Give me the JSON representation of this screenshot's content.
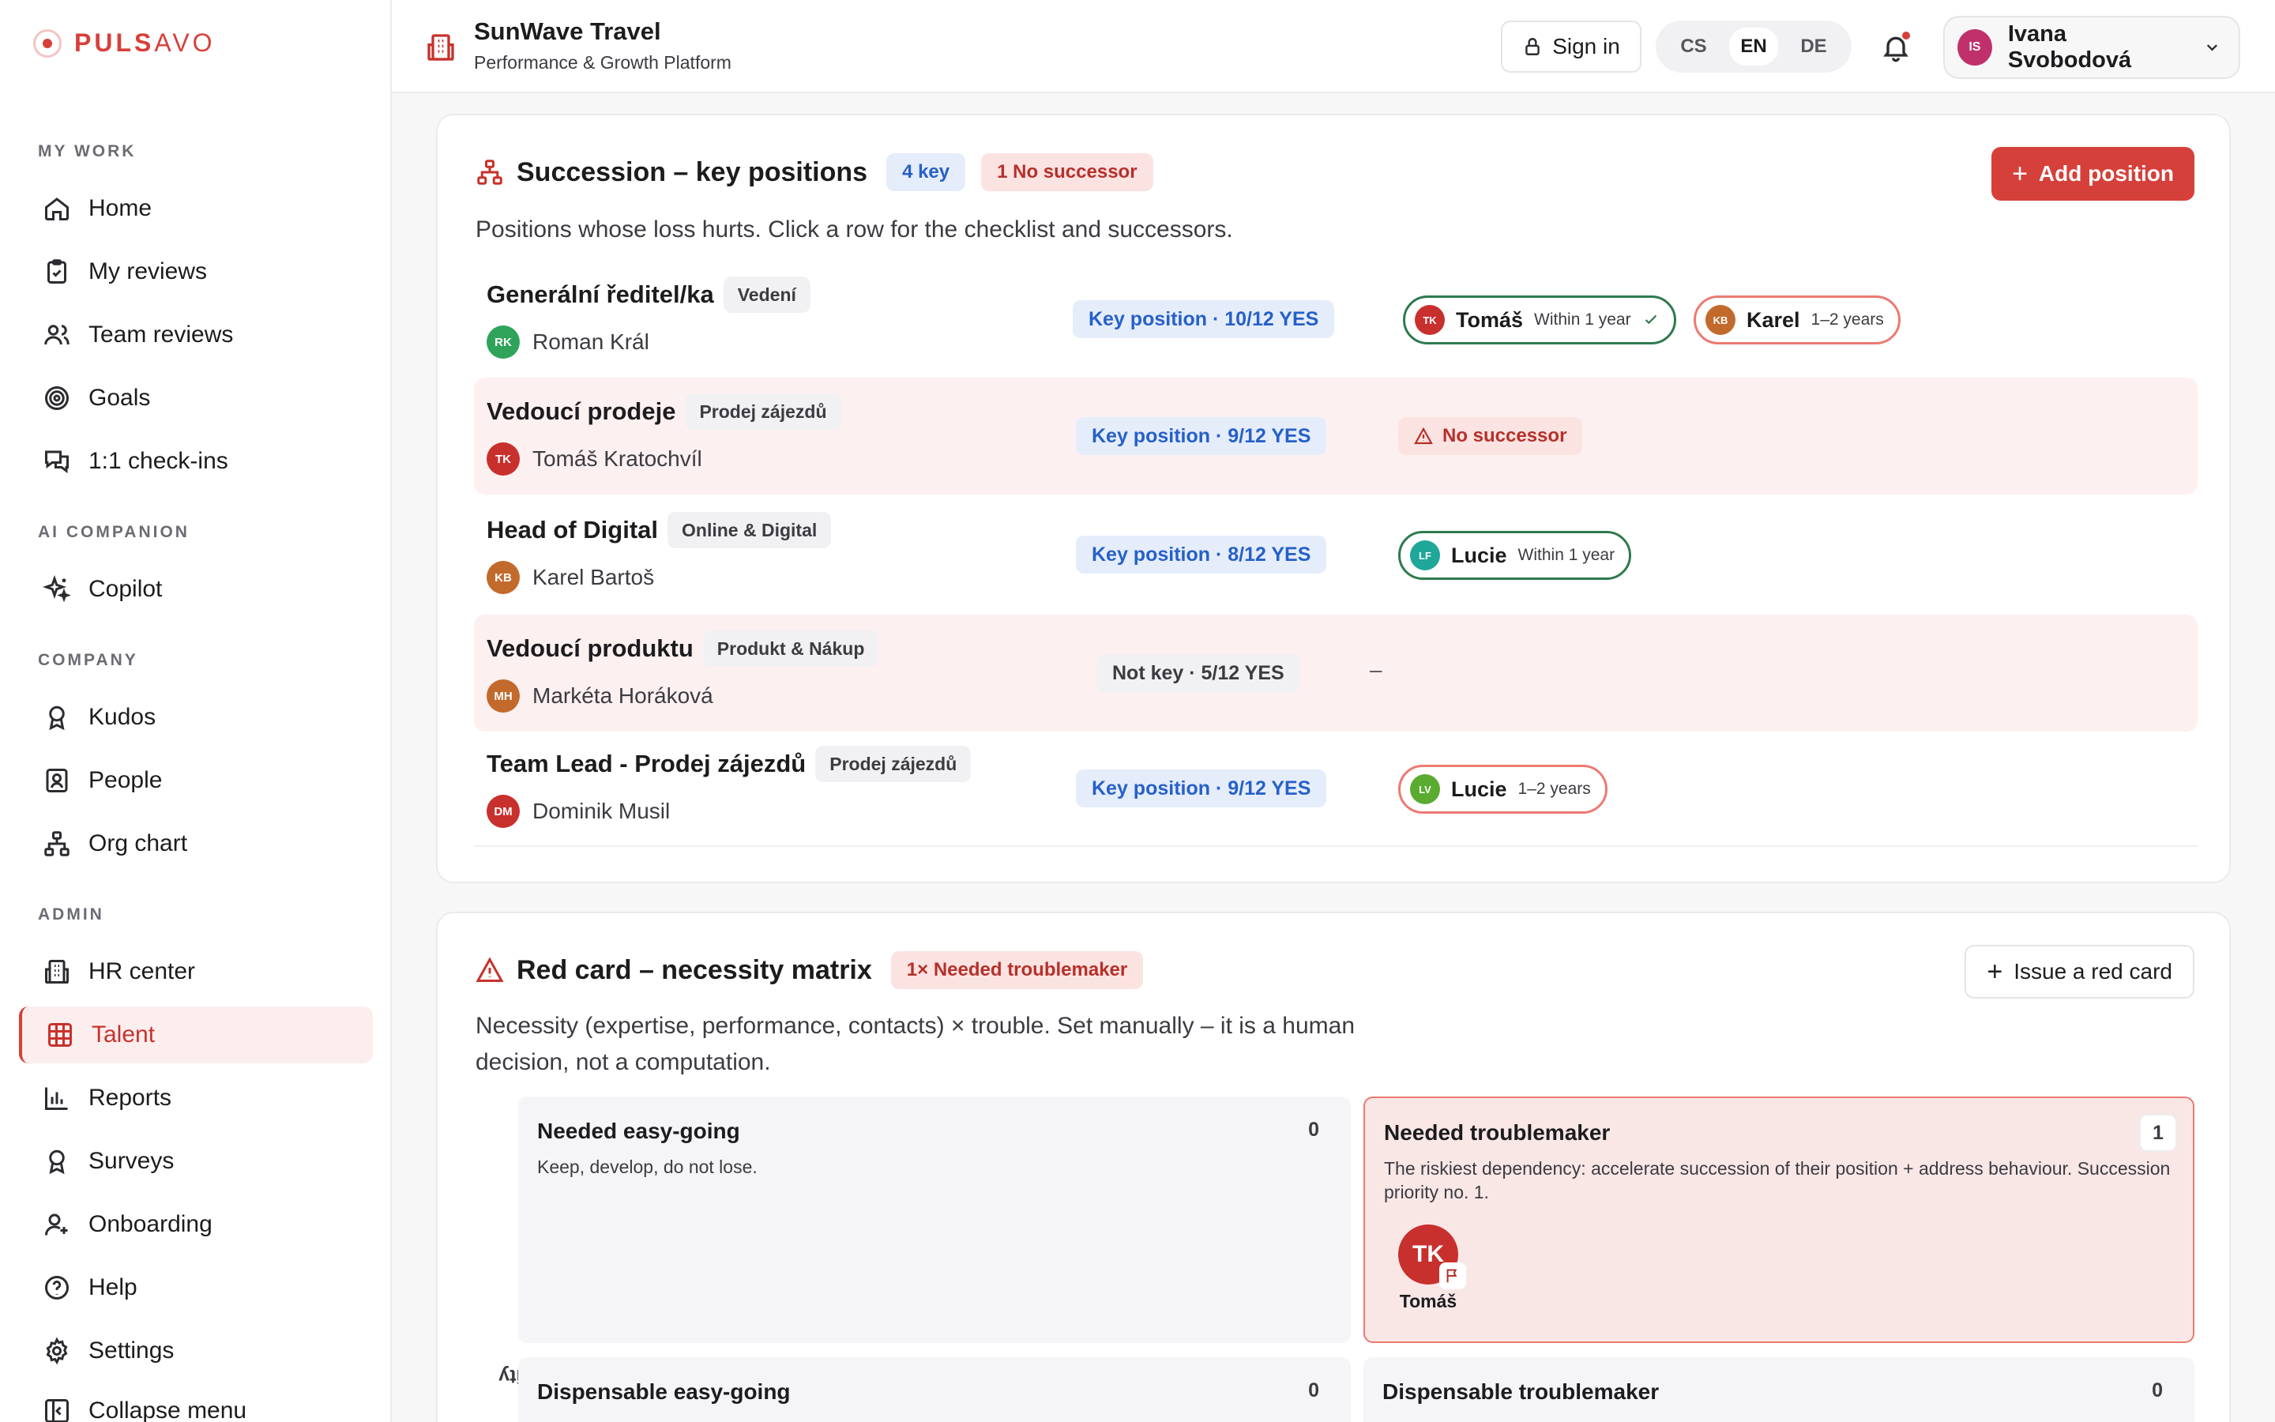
{
  "logo": {
    "strong": "PULS",
    "thin": "AVO"
  },
  "sidebar": {
    "sections": [
      "MY WORK",
      "AI COMPANION",
      "COMPANY",
      "ADMIN"
    ],
    "items": [
      {
        "label": "Home",
        "icon": "home-icon"
      },
      {
        "label": "My reviews",
        "icon": "clipboard-icon"
      },
      {
        "label": "Team reviews",
        "icon": "users-icon"
      },
      {
        "label": "Goals",
        "icon": "target-icon"
      },
      {
        "label": "1:1 check-ins",
        "icon": "chat-icon"
      },
      {
        "label": "Copilot",
        "icon": "sparkles-icon"
      },
      {
        "label": "Kudos",
        "icon": "award-icon"
      },
      {
        "label": "People",
        "icon": "contact-icon"
      },
      {
        "label": "Org chart",
        "icon": "org-chart-icon"
      },
      {
        "label": "HR center",
        "icon": "building-icon"
      },
      {
        "label": "Talent",
        "icon": "grid-icon",
        "active": true
      },
      {
        "label": "Reports",
        "icon": "bar-chart-icon"
      },
      {
        "label": "Surveys",
        "icon": "award-icon"
      },
      {
        "label": "Onboarding",
        "icon": "user-plus-icon"
      },
      {
        "label": "Help",
        "icon": "help-icon"
      },
      {
        "label": "Settings",
        "icon": "gear-icon"
      },
      {
        "label": "Collapse menu",
        "icon": "collapse-icon"
      }
    ]
  },
  "header": {
    "title": "SunWave Travel",
    "subtitle": "Performance & Growth Platform",
    "signin": "Sign in",
    "langs": [
      "CS",
      "EN",
      "DE"
    ],
    "selected_lang": "EN",
    "user_initials": "IS",
    "user_name": "Ivana Svobodová"
  },
  "succession": {
    "title": "Succession – key positions",
    "badge_key": "4 key",
    "badge_nosucc": "1 No successor",
    "add_button": "Add position",
    "desc": "Positions whose loss hurts. Click a row for the checklist and successors.",
    "rows": [
      {
        "position": "Generální ředitel/ka",
        "dept": "Vedení",
        "holder": "Roman Král",
        "holder_initials": "RK",
        "holder_color": "#2fa35a",
        "key": "Key position · 10/12 YES",
        "is_key": true,
        "alert": false,
        "successors": [
          {
            "initials": "TK",
            "name": "Tomáš",
            "when": "Within 1 year",
            "tone": "green",
            "color": "#c8302e",
            "check": true
          },
          {
            "initials": "KB",
            "name": "Karel",
            "when": "1–2 years",
            "tone": "red",
            "color": "#c26a2c",
            "check": false
          }
        ]
      },
      {
        "position": "Vedoucí prodeje",
        "dept": "Prodej zájezdů",
        "holder": "Tomáš Kratochvíl",
        "holder_initials": "TK",
        "holder_color": "#c8302e",
        "key": "Key position · 9/12 YES",
        "is_key": true,
        "alert": true,
        "no_successor": "No successor",
        "successors": []
      },
      {
        "position": "Head of Digital",
        "dept": "Online & Digital",
        "holder": "Karel Bartoš",
        "holder_initials": "KB",
        "holder_color": "#c26a2c",
        "key": "Key position · 8/12 YES",
        "is_key": true,
        "alert": false,
        "successors": [
          {
            "initials": "LF",
            "name": "Lucie",
            "when": "Within 1 year",
            "tone": "green",
            "color": "#1fa79a",
            "check": false
          }
        ]
      },
      {
        "position": "Vedoucí produktu",
        "dept": "Produkt & Nákup",
        "holder": "Markéta Horáková",
        "holder_initials": "MH",
        "holder_color": "#c26a2c",
        "key": "Not key · 5/12 YES",
        "is_key": false,
        "alert": true,
        "dash": "–",
        "successors": []
      },
      {
        "position": "Team Lead - Prodej zájezdů",
        "dept": "Prodej zájezdů",
        "holder": "Dominik Musil",
        "holder_initials": "DM",
        "holder_color": "#c8302e",
        "key": "Key position · 9/12 YES",
        "is_key": true,
        "alert": false,
        "successors": [
          {
            "initials": "LV",
            "name": "Lucie",
            "when": "1–2 years",
            "tone": "red",
            "color": "#5aab2f",
            "check": false
          }
        ]
      }
    ]
  },
  "redcard": {
    "title": "Red card – necessity matrix",
    "badge": "1× Needed troublemaker",
    "issue_button": "Issue a red card",
    "desc_line1": "Necessity (expertise, performance, contacts) × trouble. Set manually – it is a human",
    "desc_line2": "decision, not a computation.",
    "axis": "Necessity",
    "quadrants": [
      {
        "title": "Needed easy-going",
        "desc": "Keep, develop, do not lose.",
        "count": "0"
      },
      {
        "title": "Needed troublemaker",
        "desc": "The riskiest dependency: accelerate succession of their position + address behaviour. Succession priority no. 1.",
        "count": "1",
        "person_initials": "TK",
        "person_name": "Tomáš"
      },
      {
        "title": "Dispensable easy-going",
        "desc": "",
        "count": "0"
      },
      {
        "title": "Dispensable troublemaker",
        "desc": "",
        "count": "0"
      }
    ]
  }
}
